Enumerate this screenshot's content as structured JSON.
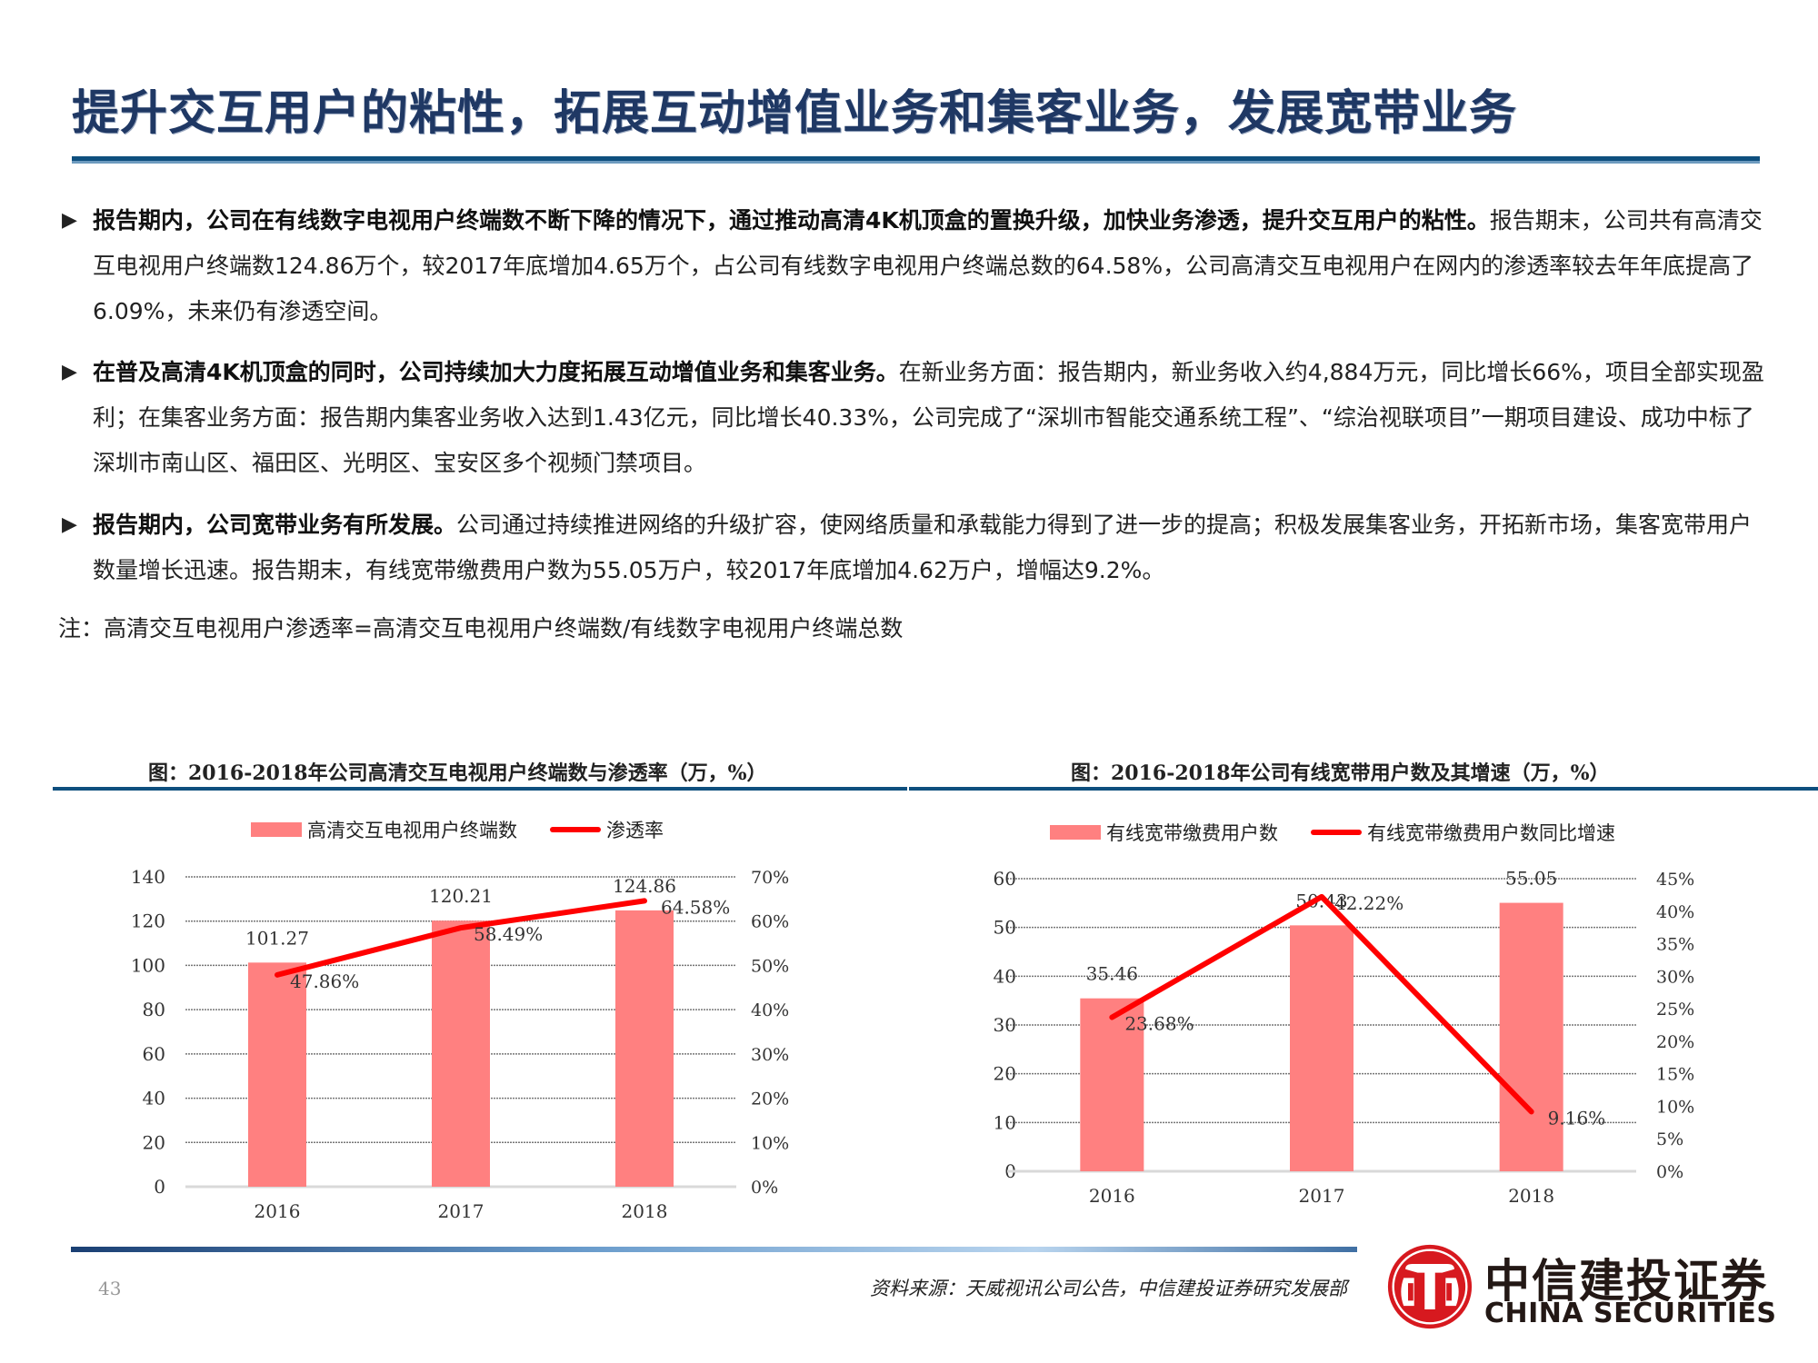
{
  "header": {
    "title": "提升交互用户的粘性，拓展互动增值业务和集客业务，发展宽带业务"
  },
  "bullets": [
    {
      "bold": "报告期内，公司在有线数字电视用户终端数不断下降的情况下，通过推动高清4K机顶盒的置换升级，加快业务渗透，提升交互用户的粘性。",
      "text": "报告期末，公司共有高清交互电视用户终端数124.86万个，较2017年底增加4.65万个，占公司有线数字电视用户终端总数的64.58%，公司高清交互电视用户在网内的渗透率较去年年底提高了6.09%，未来仍有渗透空间。"
    },
    {
      "bold": "在普及高清4K机顶盒的同时，公司持续加大力度拓展互动增值业务和集客业务。",
      "text": "在新业务方面：报告期内，新业务收入约4,884万元，同比增长66%，项目全部实现盈利；在集客业务方面：报告期内集客业务收入达到1.43亿元，同比增长40.33%，公司完成了“深圳市智能交通系统工程”、“综治视联项目”一期项目建设、成功中标了深圳市南山区、福田区、光明区、宝安区多个视频门禁项目。"
    },
    {
      "bold": "报告期内，公司宽带业务有所发展。",
      "text": "公司通过持续推进网络的升级扩容，使网络质量和承载能力得到了进一步的提高；积极发展集客业务，开拓新市场，集客宽带用户数量增长迅速。报告期末，有线宽带缴费用户数为55.05万户，较2017年底增加4.62万户，增幅达9.2%。"
    }
  ],
  "note": "注：高清交互电视用户渗透率=高清交互电视用户终端数/有线数字电视用户终端总数",
  "bullet_icon": "▶",
  "chart_data": [
    {
      "type": "bar",
      "title": "图：2016-2018年公司高清交互电视用户终端数与渗透率（万，%）",
      "categories": [
        "2016",
        "2017",
        "2018"
      ],
      "series": [
        {
          "name": "高清交互电视用户终端数",
          "type": "bar",
          "axis": "left",
          "color": "#ff8080",
          "values": [
            101.27,
            120.21,
            124.86
          ],
          "labels": [
            "101.27",
            "120.21",
            "124.86"
          ]
        },
        {
          "name": "渗透率",
          "type": "line",
          "axis": "right",
          "color": "#ff0000",
          "values": [
            47.86,
            58.49,
            64.58
          ],
          "labels": [
            "47.86%",
            "58.49%",
            "64.58%"
          ]
        }
      ],
      "left_axis": {
        "min": 0,
        "max": 140,
        "ticks": [
          "0",
          "20",
          "40",
          "60",
          "80",
          "100",
          "120",
          "140"
        ]
      },
      "right_axis": {
        "min": 0,
        "max": 70,
        "ticks": [
          "0%",
          "10%",
          "20%",
          "30%",
          "40%",
          "50%",
          "60%",
          "70%"
        ]
      },
      "grid": true,
      "legend_position": "top"
    },
    {
      "type": "bar",
      "title": "图：2016-2018年公司有线宽带用户数及其增速（万，%）",
      "categories": [
        "2016",
        "2017",
        "2018"
      ],
      "series": [
        {
          "name": "有线宽带缴费用户数",
          "type": "bar",
          "axis": "left",
          "color": "#ff8080",
          "values": [
            35.46,
            50.43,
            55.05
          ],
          "labels": [
            "35.46",
            "50.43",
            "55.05"
          ]
        },
        {
          "name": "有线宽带缴费用户数同比增速",
          "type": "line",
          "axis": "right",
          "color": "#ff0000",
          "values": [
            23.68,
            42.22,
            9.16
          ],
          "labels": [
            "23.68%",
            "42.22%",
            "9.16%"
          ]
        }
      ],
      "left_axis": {
        "min": 0,
        "max": 60,
        "ticks": [
          "0",
          "10",
          "20",
          "30",
          "40",
          "50",
          "60"
        ]
      },
      "right_axis": {
        "min": 0,
        "max": 45,
        "ticks": [
          "0%",
          "5%",
          "10%",
          "15%",
          "20%",
          "25%",
          "30%",
          "35%",
          "40%",
          "45%"
        ]
      },
      "grid": true,
      "legend_position": "top"
    }
  ],
  "footer": {
    "page_number": "43",
    "source": "资料来源：天威视讯公司公告，中信建投证券研究发展部",
    "logo_cn": "中信建投证券",
    "logo_en": "CHINA SECURITIES"
  },
  "colors": {
    "title": "#1f3864",
    "rule": "#0e4f7e",
    "bar": "#ff8080",
    "line": "#ff0000",
    "logo_red": "#d7191f"
  }
}
